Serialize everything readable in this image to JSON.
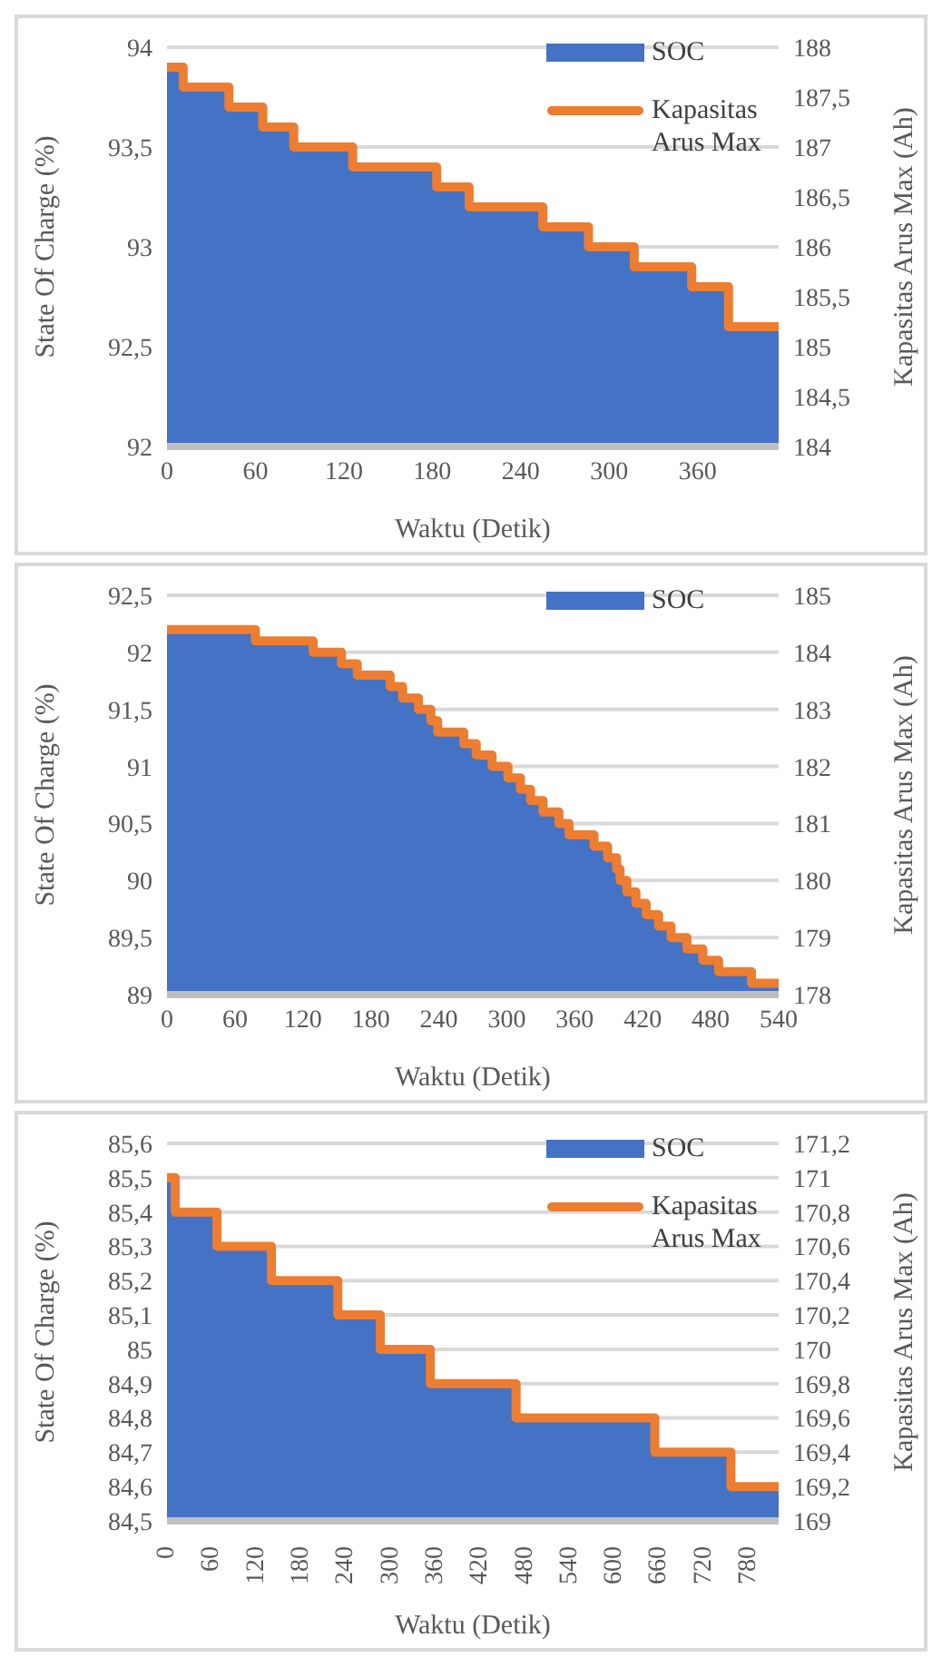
{
  "chart_data": [
    {
      "type": "step",
      "xlabel": "Waktu (Detik)",
      "ylabel": "State Of Charge (%)",
      "y2label": "Kapasitas Arus Max (Ah)",
      "x": [
        0,
        11,
        42,
        65,
        86,
        126,
        183,
        205,
        255,
        286,
        317,
        356,
        381,
        415
      ],
      "series": [
        {
          "name": "SOC",
          "type": "area",
          "color": "#4472c4",
          "values": [
            93.9,
            93.8,
            93.7,
            93.6,
            93.5,
            93.4,
            93.3,
            93.2,
            93.1,
            93.0,
            92.9,
            92.8,
            92.6,
            92.6
          ]
        },
        {
          "name": "Kapasitas Arus Max",
          "type": "step",
          "axis": "y2",
          "color": "#ed7d31",
          "values": [
            187.8,
            187.6,
            187.4,
            187.2,
            187.0,
            186.8,
            186.6,
            186.4,
            186.2,
            186.0,
            185.8,
            185.6,
            185.2,
            185.2
          ]
        }
      ],
      "xlim": [
        0,
        415
      ],
      "xticks": [
        0,
        60,
        120,
        180,
        240,
        300,
        360
      ],
      "ylim": [
        92,
        94
      ],
      "yticks": [
        92,
        {
          "value": 92.5,
          "label": "92,5"
        },
        93,
        {
          "value": 93.5,
          "label": "93,5"
        },
        94
      ],
      "y2lim": [
        184,
        188
      ],
      "y2ticks": [
        184,
        {
          "value": 184.5,
          "label": "184,5"
        },
        185,
        {
          "value": 185.5,
          "label": "185,5"
        },
        186,
        {
          "value": 186.5,
          "label": "186,5"
        },
        187,
        {
          "value": 187.5,
          "label": "187,5"
        },
        188
      ],
      "grid": "y",
      "legend": "top right"
    },
    {
      "type": "step",
      "xlabel": "Waktu (Detik)",
      "ylabel": "State Of Charge (%)",
      "y2label": "Kapasitas Arus Max (Ah)",
      "x": [
        0,
        78,
        129,
        154,
        168,
        197,
        208,
        222,
        233,
        239,
        262,
        273,
        287,
        301,
        312,
        321,
        332,
        346,
        355,
        377,
        389,
        397,
        400,
        406,
        414,
        423,
        434,
        445,
        459,
        473,
        487,
        516,
        540
      ],
      "series": [
        {
          "name": "SOC",
          "type": "area",
          "color": "#4472c4",
          "values": [
            92.2,
            92.1,
            92.0,
            91.9,
            91.8,
            91.7,
            91.6,
            91.5,
            91.4,
            91.3,
            91.2,
            91.1,
            91.0,
            90.9,
            90.8,
            90.7,
            90.6,
            90.5,
            90.4,
            90.3,
            90.2,
            90.1,
            90.0,
            89.9,
            89.8,
            89.7,
            89.6,
            89.5,
            89.4,
            89.3,
            89.2,
            89.1,
            89.1
          ]
        },
        {
          "type": "step",
          "axis": "y2",
          "color": "#ed7d31",
          "values": [
            184.4,
            184.2,
            184.0,
            183.8,
            183.6,
            183.4,
            183.2,
            183.0,
            182.8,
            182.6,
            182.4,
            182.2,
            182.0,
            181.8,
            181.6,
            181.4,
            181.2,
            181.0,
            180.8,
            180.6,
            180.4,
            180.2,
            180.0,
            179.8,
            179.6,
            179.4,
            179.2,
            179.0,
            178.8,
            178.6,
            178.4,
            178.2,
            178.2
          ]
        }
      ],
      "xlim": [
        0,
        540
      ],
      "xticks": [
        0,
        60,
        120,
        180,
        240,
        300,
        360,
        420,
        480,
        540
      ],
      "ylim": [
        89,
        92.5
      ],
      "yticks": [
        89,
        {
          "value": 89.5,
          "label": "89,5"
        },
        90,
        {
          "value": 90.5,
          "label": "90,5"
        },
        91,
        {
          "value": 91.5,
          "label": "91,5"
        },
        92,
        {
          "value": 92.5,
          "label": "92,5"
        }
      ],
      "y2lim": [
        178,
        185
      ],
      "y2ticks": [
        178,
        179,
        180,
        181,
        182,
        183,
        184,
        185
      ],
      "grid": "y",
      "legend": "top right"
    },
    {
      "type": "step",
      "xlabel": "Waktu (Detik)",
      "ylabel": "State Of Charge (%)",
      "y2label": "Kapasitas Arus Max (Ah)",
      "x": [
        0,
        11,
        67,
        140,
        229,
        286,
        353,
        468,
        654,
        756,
        820
      ],
      "series": [
        {
          "name": "SOC",
          "type": "area",
          "color": "#4472c4",
          "values": [
            85.5,
            85.4,
            85.3,
            85.2,
            85.1,
            85.0,
            84.9,
            84.8,
            84.7,
            84.6,
            84.6
          ]
        },
        {
          "name": "Kapasitas Arus Max",
          "type": "step",
          "axis": "y2",
          "color": "#ed7d31",
          "values": [
            171.0,
            170.8,
            170.6,
            170.4,
            170.2,
            170.0,
            169.8,
            169.6,
            169.4,
            169.2,
            169.2
          ]
        }
      ],
      "xlim": [
        0,
        820
      ],
      "xticks": [
        0,
        60,
        120,
        180,
        240,
        300,
        360,
        420,
        480,
        540,
        600,
        660,
        720,
        780
      ],
      "ylim": [
        84.5,
        85.6
      ],
      "yticks": [
        {
          "value": 84.5,
          "label": "84,5"
        },
        {
          "value": 84.6,
          "label": "84,6"
        },
        {
          "value": 84.7,
          "label": "84,7"
        },
        {
          "value": 84.8,
          "label": "84,8"
        },
        {
          "value": 84.9,
          "label": "84,9"
        },
        85,
        {
          "value": 85.1,
          "label": "85,1"
        },
        {
          "value": 85.2,
          "label": "85,2"
        },
        {
          "value": 85.3,
          "label": "85,3"
        },
        {
          "value": 85.4,
          "label": "85,4"
        },
        {
          "value": 85.5,
          "label": "85,5"
        },
        {
          "value": 85.6,
          "label": "85,6"
        }
      ],
      "y2lim": [
        169,
        171.2
      ],
      "y2ticks": [
        169,
        {
          "value": 169.2,
          "label": "169,2"
        },
        {
          "value": 169.4,
          "label": "169,4"
        },
        {
          "value": 169.6,
          "label": "169,6"
        },
        {
          "value": 169.8,
          "label": "169,8"
        },
        170,
        {
          "value": 170.2,
          "label": "170,2"
        },
        {
          "value": 170.4,
          "label": "170,4"
        },
        {
          "value": 170.6,
          "label": "170,6"
        },
        {
          "value": 170.8,
          "label": "170,8"
        },
        171,
        {
          "value": 171.2,
          "label": "171,2"
        }
      ],
      "grid": "y",
      "legend": "top right"
    }
  ]
}
